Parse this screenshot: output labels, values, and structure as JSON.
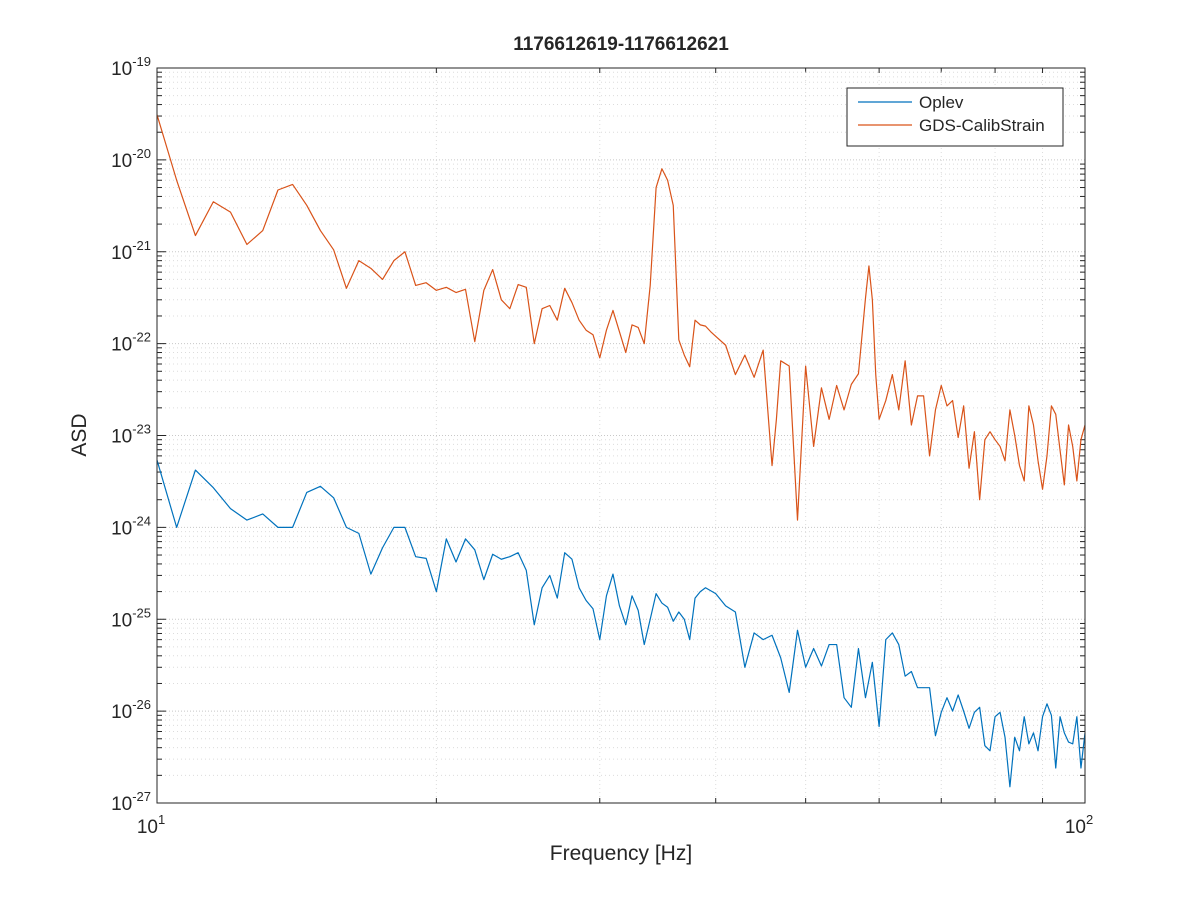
{
  "chart_data": {
    "type": "line",
    "title": "1176612619-1176612621",
    "xlabel": "Frequency [Hz]",
    "ylabel": "ASD",
    "xscale": "log",
    "yscale": "log",
    "grid": true,
    "minor_grid": true,
    "legend": "top-right",
    "xlim": [
      10,
      100
    ],
    "ylim": [
      1e-27,
      1e-19
    ],
    "xticks": [
      {
        "value": 10,
        "label": "10",
        "exponent": "1"
      },
      {
        "value": 100,
        "label": "10",
        "exponent": "2"
      }
    ],
    "yticks": [
      {
        "value": 1e-27,
        "label": "10",
        "exponent": "-27"
      },
      {
        "value": 1e-26,
        "label": "10",
        "exponent": "-26"
      },
      {
        "value": 1e-25,
        "label": "10",
        "exponent": "-25"
      },
      {
        "value": 1e-24,
        "label": "10",
        "exponent": "-24"
      },
      {
        "value": 1e-23,
        "label": "10",
        "exponent": "-23"
      },
      {
        "value": 1e-22,
        "label": "10",
        "exponent": "-22"
      },
      {
        "value": 1e-21,
        "label": "10",
        "exponent": "-21"
      },
      {
        "value": 1e-20,
        "label": "10",
        "exponent": "-20"
      },
      {
        "value": 1e-19,
        "label": "10",
        "exponent": "-19"
      }
    ],
    "series": [
      {
        "name": "Oplev",
        "color": "#0072bd",
        "x": [
          10,
          10.5,
          11,
          11.5,
          12,
          12.5,
          13,
          13.5,
          14,
          14.5,
          15,
          15.5,
          16,
          16.5,
          17,
          17.5,
          18,
          18.5,
          19,
          19.5,
          20,
          20.5,
          21,
          21.5,
          22,
          22.5,
          23,
          23.5,
          24,
          24.5,
          25,
          25.5,
          26,
          26.5,
          27,
          27.5,
          28,
          28.5,
          29,
          29.5,
          30,
          30.5,
          31,
          31.5,
          32,
          32.5,
          33,
          33.5,
          34,
          34.5,
          35,
          35.5,
          36,
          36.5,
          37,
          37.5,
          38,
          38.5,
          39,
          40,
          41,
          42,
          43,
          44,
          45,
          46,
          47,
          48,
          49,
          50,
          51,
          52,
          53,
          54,
          55,
          56,
          57,
          58,
          59,
          60,
          61,
          62,
          63,
          64,
          65,
          66,
          67,
          68,
          69,
          70,
          71,
          72,
          73,
          74,
          75,
          76,
          77,
          78,
          79,
          80,
          81,
          82,
          83,
          84,
          85,
          86,
          87,
          88,
          89,
          90,
          91,
          92,
          93,
          94,
          95,
          96,
          97,
          98,
          99,
          100
        ],
        "values": [
          5.4e-24,
          1e-24,
          4.2e-24,
          2.7e-24,
          1.6e-24,
          1.2e-24,
          1.4e-24,
          1e-24,
          1e-24,
          2.4e-24,
          2.8e-24,
          2.1e-24,
          1e-24,
          8.6e-25,
          3.1e-25,
          6e-25,
          1e-24,
          1e-24,
          4.8e-25,
          4.6e-25,
          2e-25,
          7.5e-25,
          4.2e-25,
          7.5e-25,
          5.7e-25,
          2.7e-25,
          5.1e-25,
          4.5e-25,
          4.8e-25,
          5.3e-25,
          3.4e-25,
          8.7e-26,
          2.2e-25,
          3e-25,
          1.7e-25,
          5.3e-25,
          4.5e-25,
          2.2e-25,
          1.6e-25,
          1.3e-25,
          6e-26,
          1.8e-25,
          3.1e-25,
          1.4e-25,
          8.7e-26,
          1.8e-25,
          1.25e-25,
          5.3e-26,
          1e-25,
          1.9e-25,
          1.5e-25,
          1.35e-25,
          9.5e-26,
          1.2e-25,
          1e-25,
          6e-26,
          1.7e-25,
          2e-25,
          2.2e-25,
          1.9e-25,
          1.4e-25,
          1.2e-25,
          3e-26,
          7.1e-26,
          6e-26,
          6.7e-26,
          3.8e-26,
          1.6e-26,
          7.6e-26,
          3e-26,
          4.8e-26,
          3.1e-26,
          5.3e-26,
          5.3e-26,
          1.4e-26,
          1.1e-26,
          4.8e-26,
          1.4e-26,
          3.4e-26,
          6.8e-27,
          6e-26,
          7.1e-26,
          5.3e-26,
          2.4e-26,
          2.7e-26,
          1.8e-26,
          1.8e-26,
          1.8e-26,
          5.4e-27,
          9.7e-27,
          1.4e-26,
          1e-26,
          1.5e-26,
          1e-26,
          6.5e-27,
          9.7e-27,
          1.1e-26,
          4.2e-27,
          3.7e-27,
          8.7e-27,
          9.7e-27,
          5.2e-27,
          1.5e-27,
          5.2e-27,
          3.7e-27,
          8.7e-27,
          4.4e-27,
          5.8e-27,
          3.7e-27,
          8.7e-27,
          1.2e-26,
          9e-27,
          2.4e-27,
          8.7e-27,
          5.8e-27,
          4.6e-27,
          4.4e-27,
          8.7e-27,
          2.4e-27,
          5.8e-27
        ]
      },
      {
        "name": "GDS-CalibStrain",
        "color": "#d95319",
        "x": [
          10,
          10.5,
          11,
          11.5,
          12,
          12.5,
          13,
          13.5,
          14,
          14.5,
          15,
          15.5,
          16,
          16.5,
          17,
          17.5,
          18,
          18.5,
          19,
          19.5,
          20,
          20.5,
          21,
          21.5,
          22,
          22.5,
          23,
          23.5,
          24,
          24.5,
          25,
          25.5,
          26,
          26.5,
          27,
          27.5,
          28,
          28.5,
          29,
          29.5,
          30,
          30.5,
          31,
          31.5,
          32,
          32.5,
          33,
          33.5,
          34,
          34.5,
          35,
          35.5,
          36,
          36.5,
          37,
          37.5,
          38,
          38.5,
          39,
          39.5,
          40,
          41,
          42,
          43,
          44,
          45,
          46,
          46.5,
          47,
          48,
          49,
          50,
          51,
          52,
          53,
          54,
          55,
          56,
          57,
          58,
          58.5,
          59,
          59.5,
          60,
          61,
          62,
          63,
          64,
          65,
          66,
          67,
          68,
          69,
          70,
          71,
          72,
          73,
          74,
          75,
          76,
          77,
          78,
          79,
          80,
          81,
          82,
          83,
          84,
          85,
          86,
          87,
          88,
          89,
          90,
          91,
          92,
          93,
          94,
          95,
          96,
          97,
          98,
          99,
          100
        ],
        "values": [
          3.1e-20,
          6e-21,
          1.5e-21,
          3.5e-21,
          2.7e-21,
          1.2e-21,
          1.7e-21,
          4.7e-21,
          5.4e-21,
          3.2e-21,
          1.7e-21,
          1.05e-21,
          4e-22,
          8e-22,
          6.6e-22,
          5e-22,
          8e-22,
          1e-21,
          4.3e-22,
          4.6e-22,
          3.8e-22,
          4.1e-22,
          3.6e-22,
          3.9e-22,
          1.05e-22,
          3.8e-22,
          6.4e-22,
          3e-22,
          2.4e-22,
          4.4e-22,
          4.1e-22,
          1e-22,
          2.4e-22,
          2.6e-22,
          1.8e-22,
          4e-22,
          2.8e-22,
          1.8e-22,
          1.4e-22,
          1.25e-22,
          7e-23,
          1.4e-22,
          2.3e-22,
          1.35e-22,
          8e-23,
          1.6e-22,
          1.5e-22,
          1e-22,
          4.3e-22,
          5e-21,
          8e-21,
          6e-21,
          3.2e-21,
          1.1e-22,
          7.5e-23,
          5.6e-23,
          1.8e-22,
          1.6e-22,
          1.55e-22,
          1.35e-22,
          1.2e-22,
          9.6e-23,
          4.6e-23,
          7.5e-23,
          4.3e-23,
          8.5e-23,
          4.7e-24,
          1.5e-23,
          6.5e-23,
          5.7e-23,
          1.2e-24,
          5.7e-23,
          7.6e-24,
          3.3e-23,
          1.5e-23,
          3.5e-23,
          1.9e-23,
          3.6e-23,
          4.7e-23,
          3.1e-22,
          7e-22,
          3e-22,
          4.6e-23,
          1.5e-23,
          2.4e-23,
          4.6e-23,
          1.9e-23,
          6.5e-23,
          1.3e-23,
          2.7e-23,
          2.7e-23,
          6e-24,
          1.9e-23,
          3.5e-23,
          2.1e-23,
          2.4e-23,
          9.5e-24,
          2.1e-23,
          4.4e-24,
          1.1e-23,
          2e-24,
          9e-24,
          1.1e-23,
          9e-24,
          7.6e-24,
          5.3e-24,
          1.9e-23,
          1e-23,
          4.7e-24,
          3.2e-24,
          2.1e-23,
          1.3e-23,
          5.3e-24,
          2.6e-24,
          6e-24,
          2.1e-23,
          1.7e-23,
          6.9e-24,
          2.9e-24,
          1.3e-23,
          7.6e-24,
          3.2e-24,
          9e-24,
          1.3e-23
        ]
      }
    ]
  }
}
